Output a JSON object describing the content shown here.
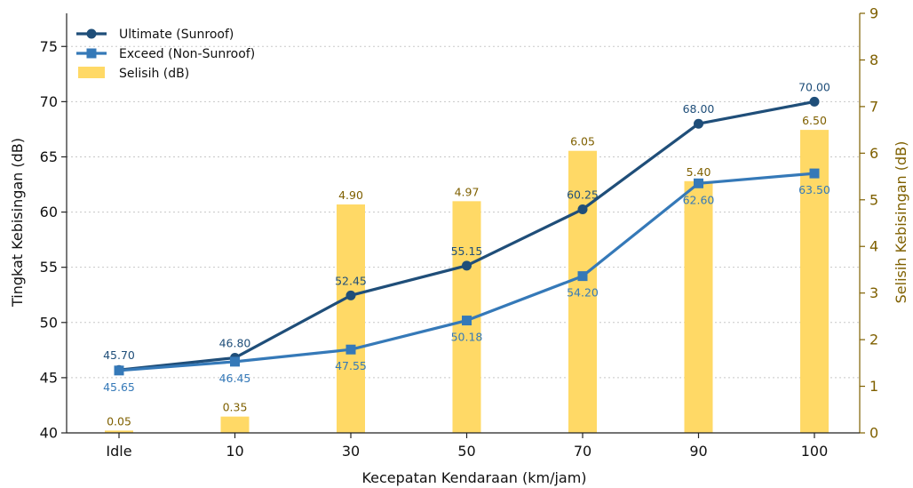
{
  "chart_data": {
    "type": "bar+line",
    "title": "",
    "xlabel": "Kecepatan Kendaraan (km/jam)",
    "ylabel_left": "Tingkat Kebisingan (dB)",
    "ylabel_right": "Selisih Kebisingan (dB)",
    "categories": [
      "Idle",
      "10",
      "30",
      "50",
      "70",
      "90",
      "100"
    ],
    "ylim_left": [
      40,
      78
    ],
    "yticks_left": [
      40,
      45,
      50,
      55,
      60,
      65,
      70,
      75
    ],
    "ylim_right": [
      0,
      9
    ],
    "yticks_right": [
      0,
      1,
      2,
      3,
      4,
      5,
      6,
      7,
      8,
      9
    ],
    "grid": "horizontal dotted",
    "legend_position": "top-left",
    "series": [
      {
        "name": "Ultimate (Sunroof)",
        "kind": "line",
        "marker": "circle",
        "axis": "left",
        "color": "#1f4e79",
        "values": [
          45.7,
          46.8,
          52.45,
          55.15,
          60.25,
          68.0,
          70.0
        ],
        "labels": [
          "45.70",
          "46.80",
          "52.45",
          "55.15",
          "60.25",
          "68.00",
          "70.00"
        ]
      },
      {
        "name": "Exceed (Non-Sunroof)",
        "kind": "line",
        "marker": "square",
        "axis": "left",
        "color": "#3579b8",
        "values": [
          45.65,
          46.45,
          47.55,
          50.18,
          54.2,
          62.6,
          63.5
        ],
        "labels": [
          "45.65",
          "46.45",
          "47.55",
          "50.18",
          "54.20",
          "62.60",
          "63.50"
        ]
      },
      {
        "name": "Selisih (dB)",
        "kind": "bar",
        "axis": "right",
        "color": "#ffd966",
        "values": [
          0.05,
          0.35,
          4.9,
          4.97,
          6.05,
          5.4,
          6.5
        ],
        "labels": [
          "0.05",
          "0.35",
          "4.90",
          "4.97",
          "6.05",
          "5.40",
          "6.50"
        ]
      }
    ],
    "colors": {
      "left_axis": "#222222",
      "right_axis": "#7f6000",
      "bar_label": "#7f6000",
      "grid": "#c8c8c8"
    }
  }
}
